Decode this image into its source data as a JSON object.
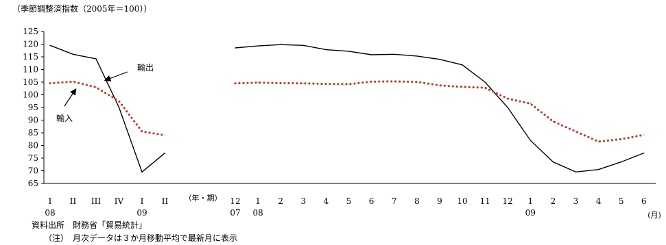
{
  "chart_data": {
    "type": "line",
    "title": "（季節調整済指数（2005年＝100））",
    "ylim": [
      65,
      125
    ],
    "y_ticks": [
      65,
      70,
      75,
      80,
      85,
      90,
      95,
      100,
      105,
      110,
      115,
      120,
      125
    ],
    "grid": false,
    "legend": "inline annotations",
    "panels": [
      {
        "name": "quarterly",
        "unit_label": "（年・期）",
        "categories": [
          "I",
          "II",
          "III",
          "IV",
          "I",
          "II"
        ],
        "year_labels": [
          {
            "index": 0,
            "text": "08"
          },
          {
            "index": 4,
            "text": "09"
          }
        ],
        "series": [
          {
            "name": "輸出",
            "values": [
              119.5,
              116.0,
              114.2,
              95.0,
              69.5,
              77.0
            ]
          },
          {
            "name": "輸入",
            "values": [
              104.5,
              105.2,
              103.0,
              97.5,
              85.5,
              84.0
            ]
          }
        ]
      },
      {
        "name": "monthly",
        "unit_label": "(月)",
        "categories": [
          "12",
          "1",
          "2",
          "3",
          "4",
          "5",
          "6",
          "7",
          "8",
          "9",
          "10",
          "11",
          "12",
          "1",
          "2",
          "3",
          "4",
          "5",
          "6"
        ],
        "year_labels": [
          {
            "index": 0,
            "text": "07"
          },
          {
            "index": 1,
            "text": "08"
          },
          {
            "index": 13,
            "text": "09"
          }
        ],
        "series": [
          {
            "name": "輸出",
            "values": [
              118.5,
              119.3,
              119.8,
              119.5,
              117.8,
              117.2,
              115.8,
              116.0,
              115.3,
              114.0,
              111.8,
              105.0,
              95.0,
              82.0,
              73.5,
              69.5,
              70.5,
              73.5,
              77.0
            ]
          },
          {
            "name": "輸入",
            "values": [
              104.5,
              104.8,
              104.6,
              104.5,
              104.3,
              104.2,
              105.2,
              105.3,
              105.1,
              103.7,
              103.1,
              102.8,
              98.5,
              96.5,
              89.5,
              85.5,
              81.5,
              82.5,
              84.2
            ]
          }
        ]
      }
    ],
    "annotations": [
      {
        "text": "輸出",
        "series": "輸出"
      },
      {
        "text": "輸入",
        "series": "輸入"
      }
    ],
    "colors": {
      "export": "#000000",
      "import": "#c0392b",
      "axis": "#000000"
    }
  },
  "footer": {
    "source": "資料出所　財務省「貿易統計」",
    "note": "（注）　月次データは３か月移動平均で最新月に表示"
  }
}
